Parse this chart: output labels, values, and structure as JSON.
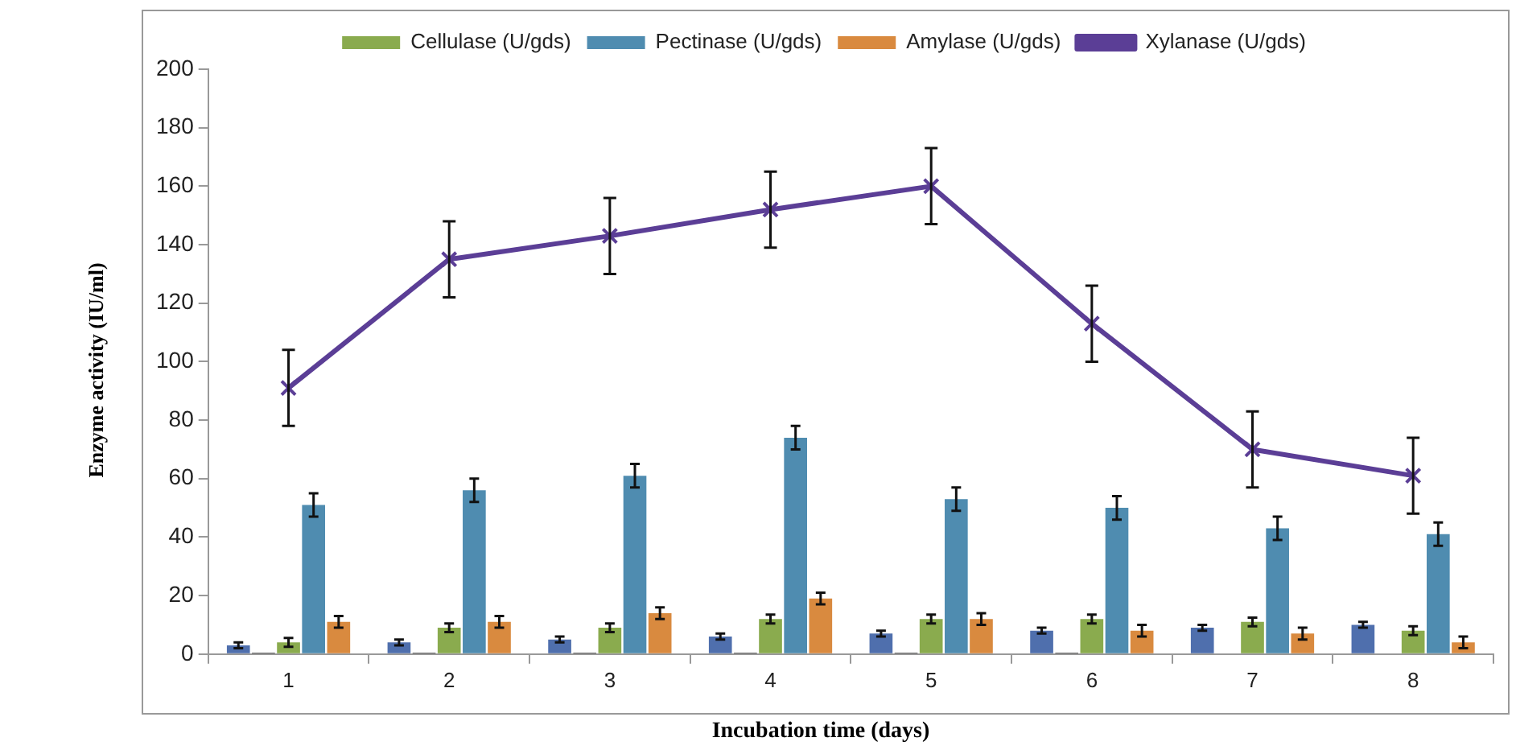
{
  "chart_data": {
    "type": "bar",
    "xlabel": "Incubation time (days)",
    "ylabel": "Enzyme activity (IU/ml)",
    "categories": [
      "1",
      "2",
      "3",
      "4",
      "5",
      "6",
      "7",
      "8"
    ],
    "series": [
      {
        "color": "#4f6fad",
        "values": [
          3,
          4,
          5,
          6,
          7,
          8,
          9,
          10
        ],
        "errors": [
          1,
          1,
          1,
          1,
          1,
          1,
          1,
          1
        ]
      },
      {
        "color": "#3a3a3a",
        "values": [
          0.5,
          0.5,
          0.5,
          0.5,
          0.5,
          0.5,
          0.3,
          0.3
        ]
      },
      {
        "name": "Cellulase (U/gds)",
        "color": "#8aab4e",
        "values": [
          4,
          9,
          9,
          12,
          12,
          12,
          11,
          8
        ],
        "errors": [
          1.5,
          1.5,
          1.5,
          1.5,
          1.5,
          1.5,
          1.5,
          1.5
        ]
      },
      {
        "name": "Pectinase (U/gds)",
        "color": "#4f8cb0",
        "values": [
          51,
          56,
          61,
          74,
          53,
          50,
          43,
          41
        ],
        "errors": [
          4,
          4,
          4,
          4,
          4,
          4,
          4,
          4
        ]
      },
      {
        "name": "Amylase (U/gds)",
        "color": "#d98a3f",
        "values": [
          11,
          11,
          14,
          19,
          12,
          8,
          7,
          4
        ],
        "errors": [
          2,
          2,
          2,
          2,
          2,
          2,
          2,
          2
        ]
      },
      {
        "name": "Xylanase (U/gds)",
        "type": "line",
        "color": "#5b3e96",
        "marker": "cross",
        "values": [
          91,
          135,
          143,
          152,
          160,
          113,
          70,
          61
        ],
        "errors": [
          13,
          13,
          13,
          13,
          13,
          13,
          13,
          13
        ]
      }
    ],
    "ylim": [
      0,
      200
    ],
    "yticks": [
      0,
      20,
      40,
      60,
      80,
      100,
      120,
      140,
      160,
      180,
      200
    ],
    "grid": false,
    "legend": "top"
  }
}
